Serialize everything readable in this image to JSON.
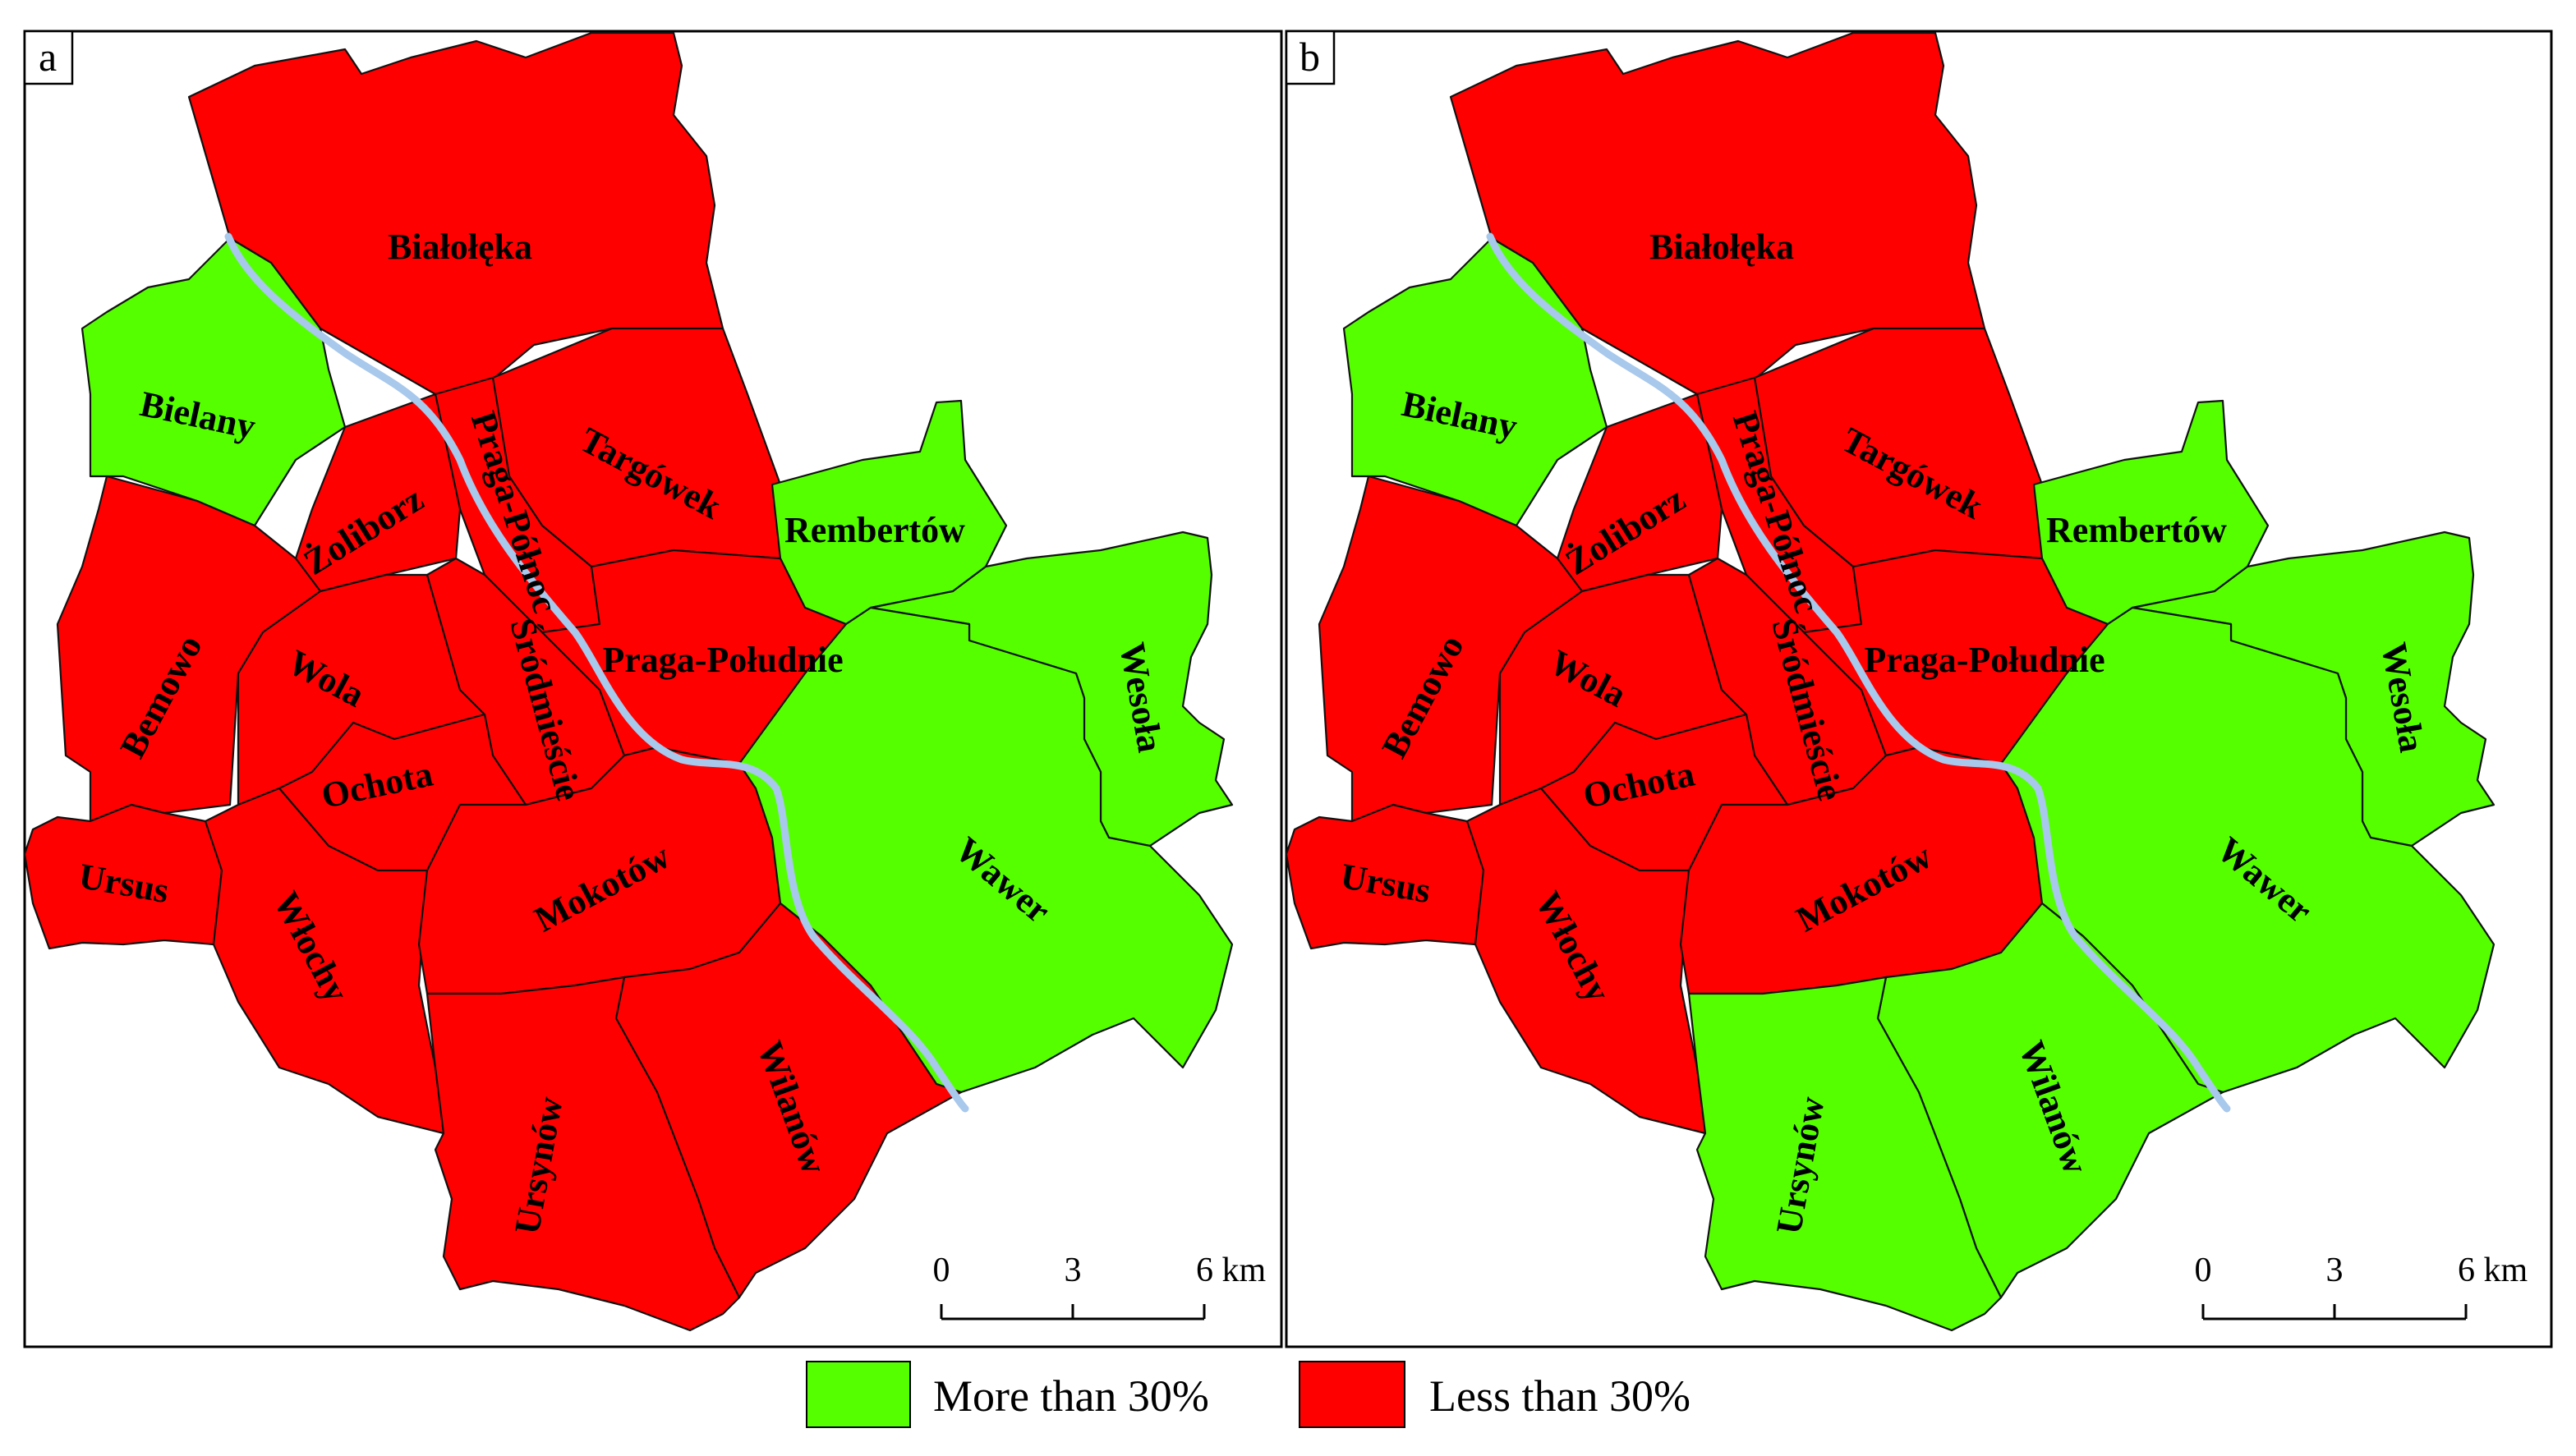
{
  "colors": {
    "more": "#55ff00",
    "less": "#ff0000",
    "river": "#a8c8ec"
  },
  "legend": {
    "more_label": "More than 30%",
    "less_label": "Less than 30%"
  },
  "scale": {
    "ticks": [
      "0",
      "3",
      "6 km"
    ]
  },
  "district_names": [
    "Białołęka",
    "Bielany",
    "Targówek",
    "Praga-Północ",
    "Żoliborz",
    "Rembertów",
    "Bemowo",
    "Wola",
    "Śródmieście",
    "Praga-Południe",
    "Wesoła",
    "Ochota",
    "Ursus",
    "Włochy",
    "Mokotów",
    "Wawer",
    "Wilanów",
    "Ursynów"
  ],
  "panels": [
    {
      "tag": "a",
      "classification": {
        "Białołęka": "less",
        "Bielany": "more",
        "Targówek": "less",
        "Praga-Północ": "less",
        "Żoliborz": "less",
        "Rembertów": "more",
        "Bemowo": "less",
        "Wola": "less",
        "Śródmieście": "less",
        "Praga-Południe": "less",
        "Wesoła": "more",
        "Ochota": "less",
        "Ursus": "less",
        "Włochy": "less",
        "Mokotów": "less",
        "Wawer": "more",
        "Wilanów": "less",
        "Ursynów": "less"
      }
    },
    {
      "tag": "b",
      "classification": {
        "Białołęka": "less",
        "Bielany": "more",
        "Targówek": "less",
        "Praga-Północ": "less",
        "Żoliborz": "less",
        "Rembertów": "more",
        "Bemowo": "less",
        "Wola": "less",
        "Śródmieście": "less",
        "Praga-Południe": "less",
        "Wesoła": "more",
        "Ochota": "less",
        "Ursus": "less",
        "Włochy": "less",
        "Mokotów": "less",
        "Wawer": "more",
        "Wilanów": "more",
        "Ursynów": "more"
      }
    }
  ]
}
